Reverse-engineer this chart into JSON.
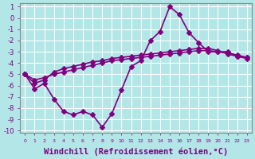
{
  "background_color": "#b3e6e6",
  "grid_color": "#ffffff",
  "line_color": "#800080",
  "marker": "D",
  "markersize": 3,
  "linewidth": 1.2,
  "xlabel": "Windchill (Refroidissement éolien,°C)",
  "xlabel_fontsize": 7.5,
  "xtick_labels": [
    "0",
    "1",
    "2",
    "3",
    "4",
    "5",
    "6",
    "7",
    "8",
    "9",
    "10",
    "11",
    "12",
    "13",
    "14",
    "15",
    "16",
    "17",
    "18",
    "19",
    "20",
    "21",
    "22",
    "23"
  ],
  "ytick_min": -10,
  "ytick_max": 1,
  "ytick_step": 1,
  "series1_x": [
    0,
    1,
    2,
    3,
    4,
    5,
    6,
    7,
    8,
    9,
    10,
    11,
    12,
    13,
    14,
    15,
    16,
    17,
    18,
    19,
    20,
    21,
    22,
    23
  ],
  "series1_y": [
    -5.0,
    -6.3,
    -5.8,
    -7.2,
    -8.3,
    -8.6,
    -8.3,
    -8.6,
    -9.7,
    -8.5,
    -6.4,
    -4.3,
    -3.8,
    -2.0,
    -1.2,
    1.0,
    0.3,
    -1.3,
    -2.2,
    -3.0,
    -3.0,
    -3.0,
    -3.4,
    -3.5
  ],
  "series2_x": [
    0,
    1,
    2,
    3,
    4,
    5,
    6,
    7,
    8,
    9,
    10,
    11,
    12,
    13,
    14,
    15,
    16,
    17,
    18,
    19,
    20,
    21,
    22,
    23
  ],
  "series2_y": [
    -5.0,
    -5.5,
    -5.3,
    -5.0,
    -4.8,
    -4.6,
    -4.4,
    -4.2,
    -4.0,
    -3.8,
    -3.7,
    -3.6,
    -3.5,
    -3.4,
    -3.3,
    -3.2,
    -3.1,
    -3.0,
    -2.9,
    -2.9,
    -3.0,
    -3.1,
    -3.3,
    -3.5
  ],
  "series3_x": [
    0,
    1,
    2,
    3,
    4,
    5,
    6,
    7,
    8,
    9,
    10,
    11,
    12,
    13,
    14,
    15,
    16,
    17,
    18,
    19,
    20,
    21,
    22,
    23
  ],
  "series3_y": [
    -5.0,
    -5.8,
    -5.5,
    -4.8,
    -4.5,
    -4.3,
    -4.1,
    -3.9,
    -3.8,
    -3.6,
    -3.5,
    -3.4,
    -3.3,
    -3.2,
    -3.1,
    -3.0,
    -2.9,
    -2.8,
    -2.7,
    -2.7,
    -2.9,
    -3.2,
    -3.4,
    -3.6
  ]
}
